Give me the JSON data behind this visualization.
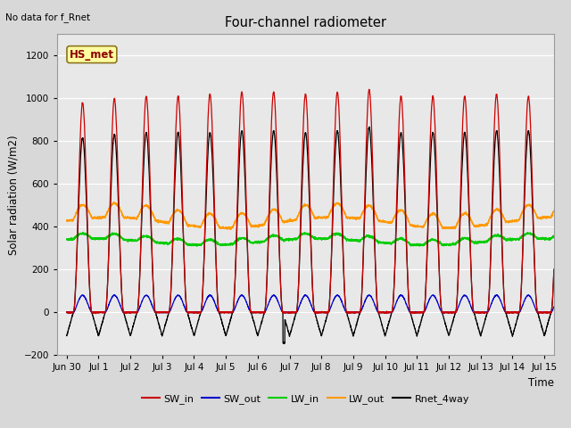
{
  "title": "Four-channel radiometer",
  "top_left_note": "No data for f_Rnet",
  "station_label": "HS_met",
  "ylabel": "Solar radiation (W/m2)",
  "xlabel": "Time",
  "ylim": [
    -200,
    1300
  ],
  "yticks": [
    -200,
    0,
    200,
    400,
    600,
    800,
    1000,
    1200
  ],
  "legend": [
    "SW_in",
    "SW_out",
    "LW_in",
    "LW_out",
    "Rnet_4way"
  ],
  "legend_colors": [
    "#cc0000",
    "#0000cc",
    "#00cc00",
    "#ff9900",
    "#000000"
  ],
  "xtick_labels": [
    "Jun 30",
    "Jul 1",
    "Jul 2",
    "Jul 3",
    "Jul 4",
    "Jul 5",
    "Jul 6",
    "Jul 7",
    "Jul 8",
    "Jul 9",
    "Jul 10",
    "Jul 11",
    "Jul 12",
    "Jul 13",
    "Jul 14",
    "Jul 15"
  ],
  "fig_bg_color": "#d8d8d8",
  "plot_bg_color": "#e8e8e8",
  "grid_color": "#ffffff",
  "SW_in_peak": 1010,
  "SW_out_peak": 80,
  "LW_in_base": 330,
  "LW_out_base": 420,
  "Rnet_peak": 840,
  "Rnet_night": -110,
  "sunrise": 5.0,
  "sunset": 19.0
}
